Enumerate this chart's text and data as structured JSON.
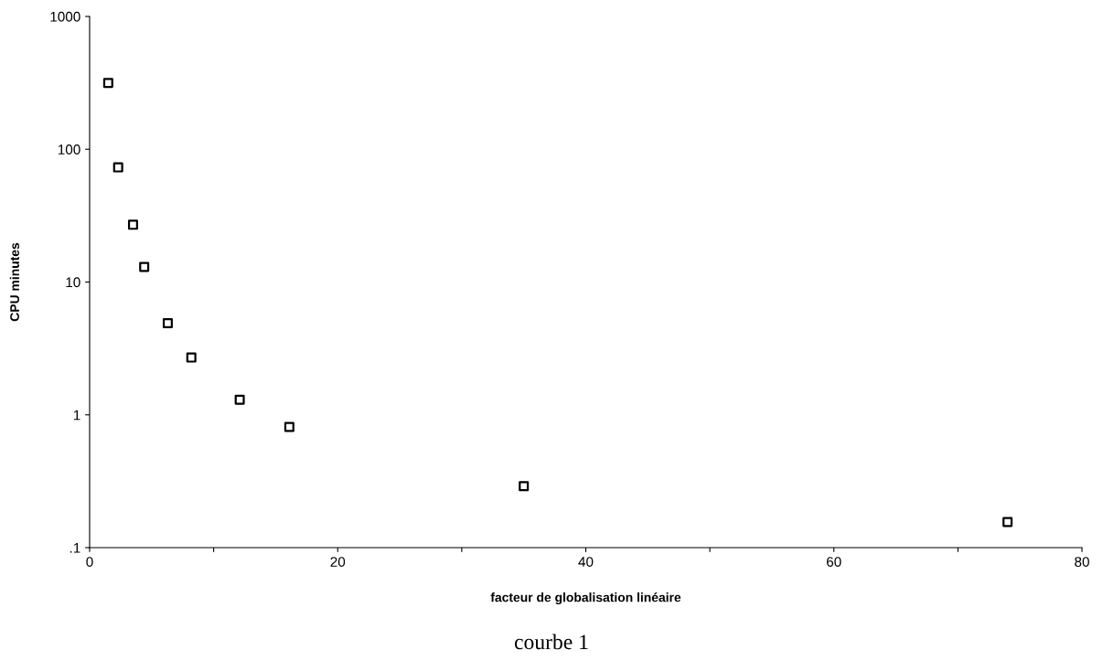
{
  "chart_data": {
    "type": "scatter",
    "xlabel": "facteur de globalisation linéaire",
    "ylabel": "CPU minutes",
    "x": [
      1.5,
      2.3,
      3.5,
      4.4,
      6.3,
      8.2,
      12.1,
      16.1,
      35,
      74
    ],
    "series": [
      {
        "color": "#000000",
        "values": [
          316,
          73,
          27,
          13,
          4.9,
          2.7,
          1.3,
          0.81,
          0.29,
          0.156
        ]
      }
    ],
    "marker": "square",
    "log": "y",
    "grid": false,
    "legend": false,
    "xlim": [
      0,
      80
    ],
    "xticks": [
      0,
      {
        "value": 10,
        "label": null
      },
      20,
      {
        "value": 30,
        "label": null
      },
      40,
      {
        "value": 50,
        "label": null
      },
      60,
      {
        "value": 70,
        "label": null
      },
      80
    ],
    "ylim": [
      0.1,
      1000
    ],
    "yticks": [
      {
        "value": 0.1,
        "label": ".1"
      },
      1,
      10,
      100,
      1000
    ],
    "annotations": [
      "courbe 1"
    ]
  }
}
